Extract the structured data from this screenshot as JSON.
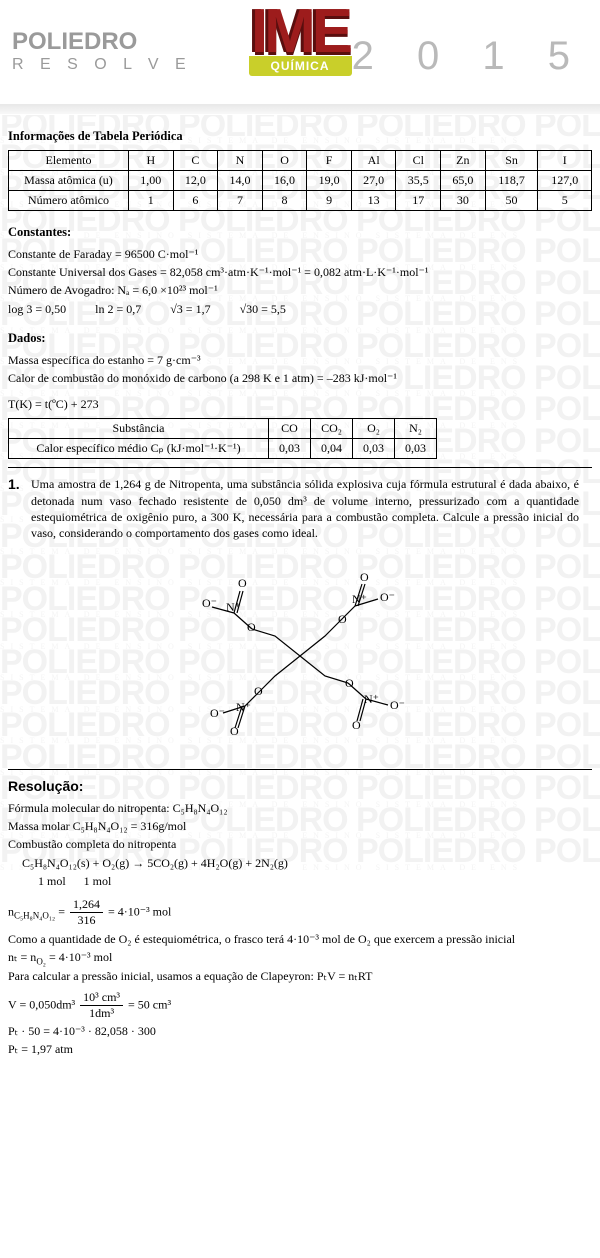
{
  "header": {
    "brand_top": "POLIEDRO",
    "brand_bottom": "R E S O L V E",
    "exam": "IME",
    "subject": "QUÍMICA",
    "year": "2 0 1 5"
  },
  "section_periodic_title": "Informações de Tabela Periódica",
  "periodic": {
    "row_labels": [
      "Elemento",
      "Massa atômica (u)",
      "Número atômico"
    ],
    "cols": [
      "H",
      "C",
      "N",
      "O",
      "F",
      "Al",
      "Cl",
      "Zn",
      "Sn",
      "I"
    ],
    "mass": [
      "1,00",
      "12,0",
      "14,0",
      "16,0",
      "19,0",
      "27,0",
      "35,5",
      "65,0",
      "118,7",
      "127,0"
    ],
    "znum": [
      "1",
      "6",
      "7",
      "8",
      "9",
      "13",
      "17",
      "30",
      "50",
      "5"
    ]
  },
  "constants_title": "Constantes:",
  "constants": {
    "l1": "Constante de Faraday = 96500 C·mol⁻¹",
    "l2": "Constante Universal dos Gases = 82,058 cm³·atm·K⁻¹·mol⁻¹ = 0,082 atm·L·K⁻¹·mol⁻¹",
    "l3": "Número de Avogadro: Nₐ = 6,0 ×10²³ mol⁻¹",
    "m1": "log 3 = 0,50",
    "m2": "ln 2 = 0,7",
    "m3": "√3 = 1,7",
    "m4": "√30 = 5,5"
  },
  "dados_title": "Dados:",
  "dados": {
    "l1": "Massa específica do estanho = 7 g·cm⁻³",
    "l2": "Calor de combustão do monóxido de carbono (a 298 K e 1 atm) = –283 kJ·mol⁻¹",
    "l3": "T(K) = t(ºC) + 273"
  },
  "cp_table": {
    "r1_label": "Substância",
    "r2_label": "Calor específico médio Cₚ (kJ·mol⁻¹·K⁻¹)",
    "cols": [
      "CO",
      "CO₂",
      "O₂",
      "N₂"
    ],
    "vals": [
      "0,03",
      "0,04",
      "0,03",
      "0,03"
    ]
  },
  "question": {
    "num": "1.",
    "text": "Uma amostra de 1,264 g de Nitropenta, uma substância sólida explosiva cuja fórmula estrutural é dada abaixo, é detonada num vaso fechado resistente de 0,050 dm³ de volume interno, pressurizado com a quantidade estequiométrica de oxigênio puro, a 300 K, necessária para a combustão completa. Calcule a pressão inicial do vaso, considerando o comportamento dos gases como ideal."
  },
  "resolucao_title": "Resolução:",
  "sol": {
    "l1": "Fórmula molecular do nitropenta: C₅H₈N₄O₁₂",
    "l2": "Massa molar C₅H₈N₄O₁₂ = 316g/mol",
    "l3": "Combustão completa do nitropenta",
    "eq1_a": "C₅H₈N₄O₁₂(s) + O₂(g) → 5CO₂(g) + 4H₂O(g) + 2N₂(g)",
    "eq1_b": "1 mol      1 mol",
    "n_lhs": "n",
    "n_sub": "C₅H₈N₄O₁₂",
    "frac1_num": "1,264",
    "frac1_den": "316",
    "n_res": "= 4·10⁻³ mol",
    "l4": "Como a quantidade de O₂ é estequiométrica, o frasco terá  4·10⁻³ mol de O₂  que exercem a pressão inicial",
    "l5": "nₜ = n",
    "l5_sub": "O₂",
    "l5_r": " = 4·10⁻³ mol",
    "l6": "Para calcular a pressão inicial, usamos a equação de Clapeyron:  PₜV = nₜRT",
    "v_lhs": "V = 0,050dm³",
    "frac2_num": "10³ cm³",
    "frac2_den": "1dm³",
    "v_r": "= 50 cm³",
    "l7": "Pₜ · 50 = 4·10⁻³ · 82,058 · 300",
    "l8": "Pₜ = 1,97 atm"
  },
  "watermark": {
    "big": "POLIEDRO POLIEDRO POLIEDRO POLIEDRO",
    "small": "SISTEMA   DE   ENSINO        SISTEMA   DE   ENSINO        SISTEMA   DE   ENS"
  }
}
